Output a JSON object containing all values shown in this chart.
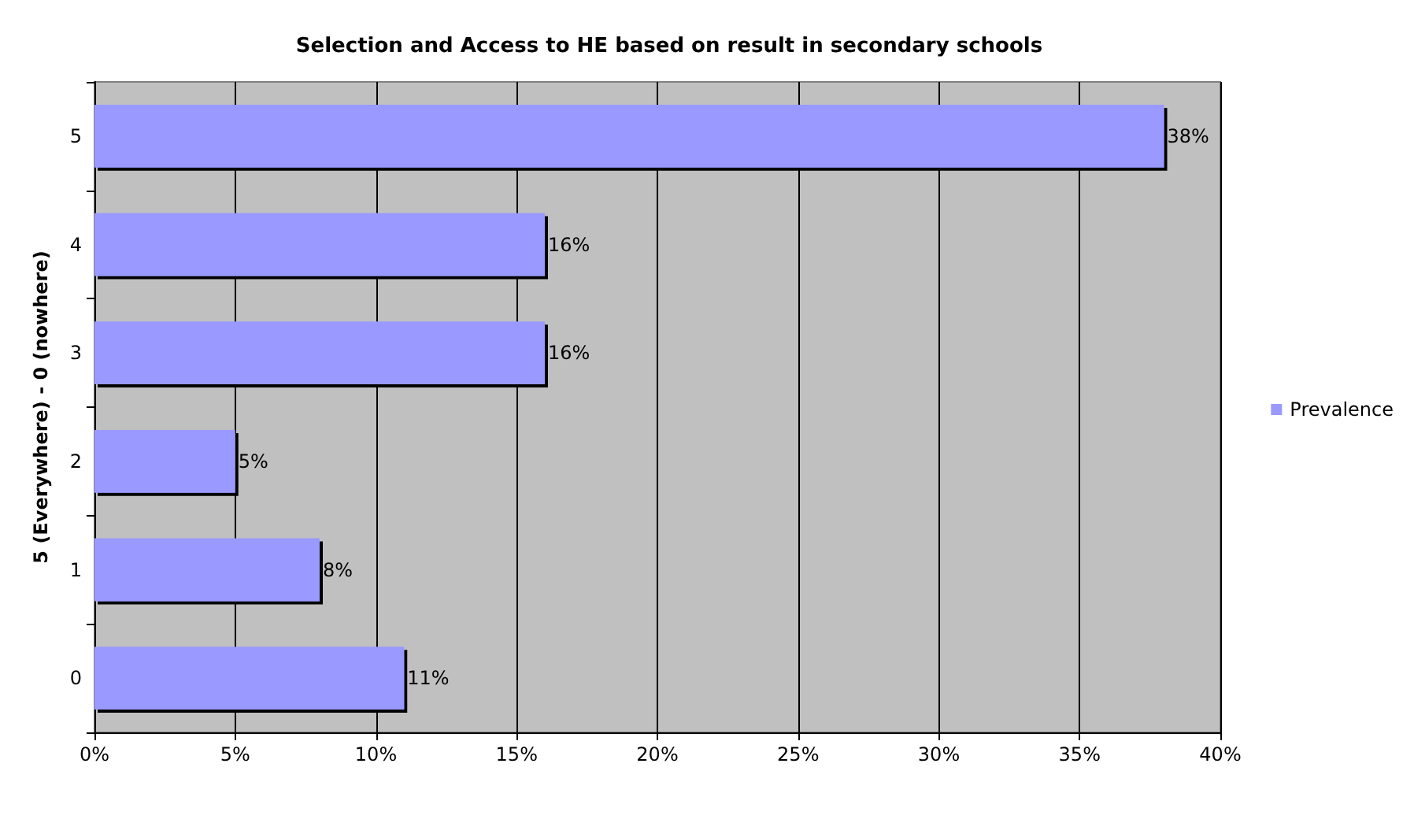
{
  "chart_data": {
    "type": "bar",
    "orientation": "horizontal",
    "title": "Selection and Access to HE based on result in secondary schools",
    "ylabel": "5 (Everywhere) - 0 (nowhere)",
    "categories": [
      "5",
      "4",
      "3",
      "2",
      "1",
      "0"
    ],
    "series": [
      {
        "name": "Prevalence",
        "color": "#9999ff",
        "values": [
          38,
          16,
          16,
          5,
          8,
          11
        ]
      }
    ],
    "value_labels": [
      "38%",
      "16%",
      "16%",
      "5%",
      "8%",
      "11%"
    ],
    "xlim": [
      0,
      40
    ],
    "xticks": [
      {
        "value": 0,
        "label": "0%"
      },
      {
        "value": 5,
        "label": "5%"
      },
      {
        "value": 10,
        "label": "10%"
      },
      {
        "value": 15,
        "label": "15%"
      },
      {
        "value": 20,
        "label": "20%"
      },
      {
        "value": 25,
        "label": "25%"
      },
      {
        "value": 30,
        "label": "30%"
      },
      {
        "value": 35,
        "label": "35%"
      },
      {
        "value": 40,
        "label": "40%"
      }
    ],
    "grid": "x",
    "legend": "right"
  }
}
